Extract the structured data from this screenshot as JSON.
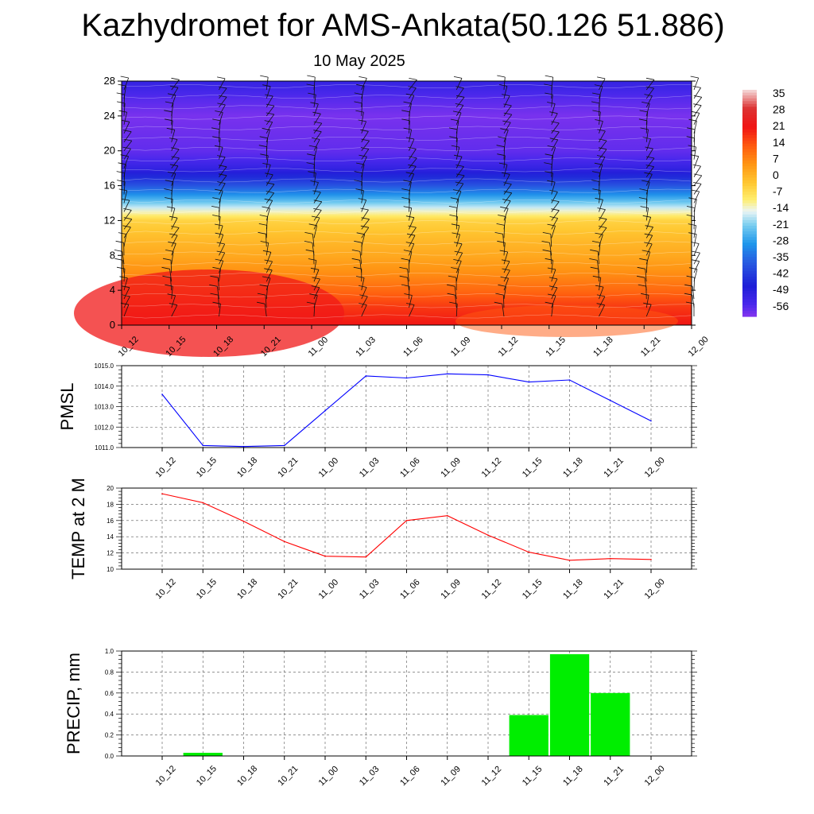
{
  "title": "Kazhydromet for AMS-Ankata(50.126 51.886)",
  "date": "10 May 2025",
  "colors": {
    "pmsl_line": "#0000ff",
    "temp_line": "#ff0000",
    "precip_bar": "#00ee00"
  },
  "chart_data": [
    {
      "type": "heatmap",
      "title": "",
      "xlabel": "",
      "ylabel": "",
      "x": [
        "10_12",
        "10_15",
        "10_18",
        "10_21",
        "11_00",
        "11_03",
        "11_06",
        "11_09",
        "11_12",
        "11_15",
        "11_18",
        "11_21",
        "12_00"
      ],
      "ylim": [
        0,
        28
      ],
      "yticks": [
        "0",
        "4",
        "8",
        "12",
        "16",
        "20",
        "24",
        "28"
      ],
      "colorbar": {
        "labels": [
          "35",
          "28",
          "21",
          "14",
          "7",
          "0",
          "-7",
          "-14",
          "-21",
          "-28",
          "-35",
          "-42",
          "-49",
          "-56"
        ],
        "range": [
          -59,
          38
        ]
      },
      "profile": {
        "heights": [
          0,
          2,
          4,
          6,
          8,
          10,
          12,
          13,
          14,
          15,
          16,
          17,
          18,
          19,
          20,
          22,
          24,
          26,
          28
        ],
        "values": [
          22,
          18,
          12,
          7,
          3,
          0,
          -4,
          -12,
          -20,
          -29,
          -37,
          -44,
          -50,
          -54,
          -56,
          -57,
          -58,
          -55,
          -50
        ]
      },
      "wind_barbs": true
    },
    {
      "type": "line",
      "ylabel": "PMSL",
      "x": [
        "10_12",
        "10_15",
        "10_18",
        "10_21",
        "11_00",
        "11_03",
        "11_06",
        "11_09",
        "11_12",
        "11_15",
        "11_18",
        "11_21",
        "12_00"
      ],
      "yticks": [
        "1011.0",
        "1012.0",
        "1013.0",
        "1014.0",
        "1015.0"
      ],
      "ylim": [
        1011.0,
        1015.0
      ],
      "grid": true,
      "series": [
        {
          "values": [
            1013.6,
            1011.1,
            1011.05,
            1011.1,
            1012.8,
            1014.5,
            1014.4,
            1014.6,
            1014.55,
            1014.2,
            1014.3,
            1013.3,
            1012.3
          ]
        }
      ]
    },
    {
      "type": "line",
      "ylabel": "TEMP at 2 M",
      "x": [
        "10_12",
        "10_15",
        "10_18",
        "10_21",
        "11_00",
        "11_03",
        "11_06",
        "11_09",
        "11_12",
        "11_15",
        "11_18",
        "11_21",
        "12_00"
      ],
      "yticks": [
        "10",
        "12",
        "14",
        "16",
        "18",
        "20"
      ],
      "ylim": [
        10,
        20
      ],
      "grid": true,
      "series": [
        {
          "values": [
            19.3,
            18.2,
            15.9,
            13.4,
            11.6,
            11.5,
            16.0,
            16.6,
            14.2,
            12.1,
            11.1,
            11.3,
            11.2
          ]
        }
      ]
    },
    {
      "type": "bar",
      "ylabel": "PRECIP, mm",
      "x": [
        "10_12",
        "10_15",
        "10_18",
        "10_21",
        "11_00",
        "11_03",
        "11_06",
        "11_09",
        "11_12",
        "11_15",
        "11_18",
        "11_21",
        "12_00"
      ],
      "yticks": [
        "0.0",
        "0.2",
        "0.4",
        "0.6",
        "0.8",
        "1.0"
      ],
      "ylim": [
        0,
        1.0
      ],
      "grid": true,
      "series": [
        {
          "values": [
            0,
            0.03,
            0,
            0,
            0,
            0,
            0,
            0,
            0,
            0.39,
            0.97,
            0.6,
            0
          ]
        }
      ]
    }
  ]
}
